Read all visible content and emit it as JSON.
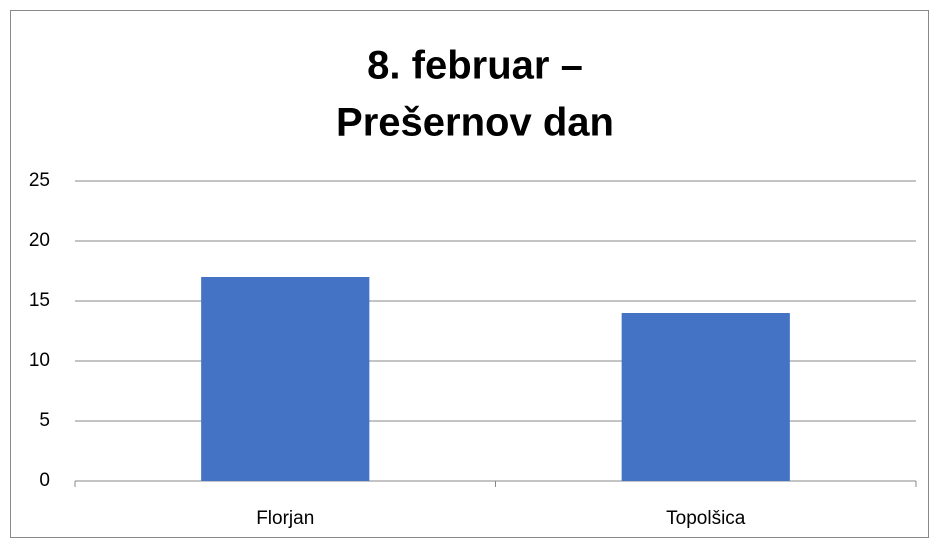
{
  "chart_data": {
    "type": "bar",
    "title": [
      "8. februar –",
      "Prešernov dan"
    ],
    "categories": [
      "Florjan",
      "Topolšica"
    ],
    "values": [
      17,
      14
    ],
    "color": "#4472c4",
    "ylim": [
      0,
      25
    ],
    "yticks": [
      0,
      5,
      10,
      15,
      20,
      25
    ],
    "grid": true
  }
}
